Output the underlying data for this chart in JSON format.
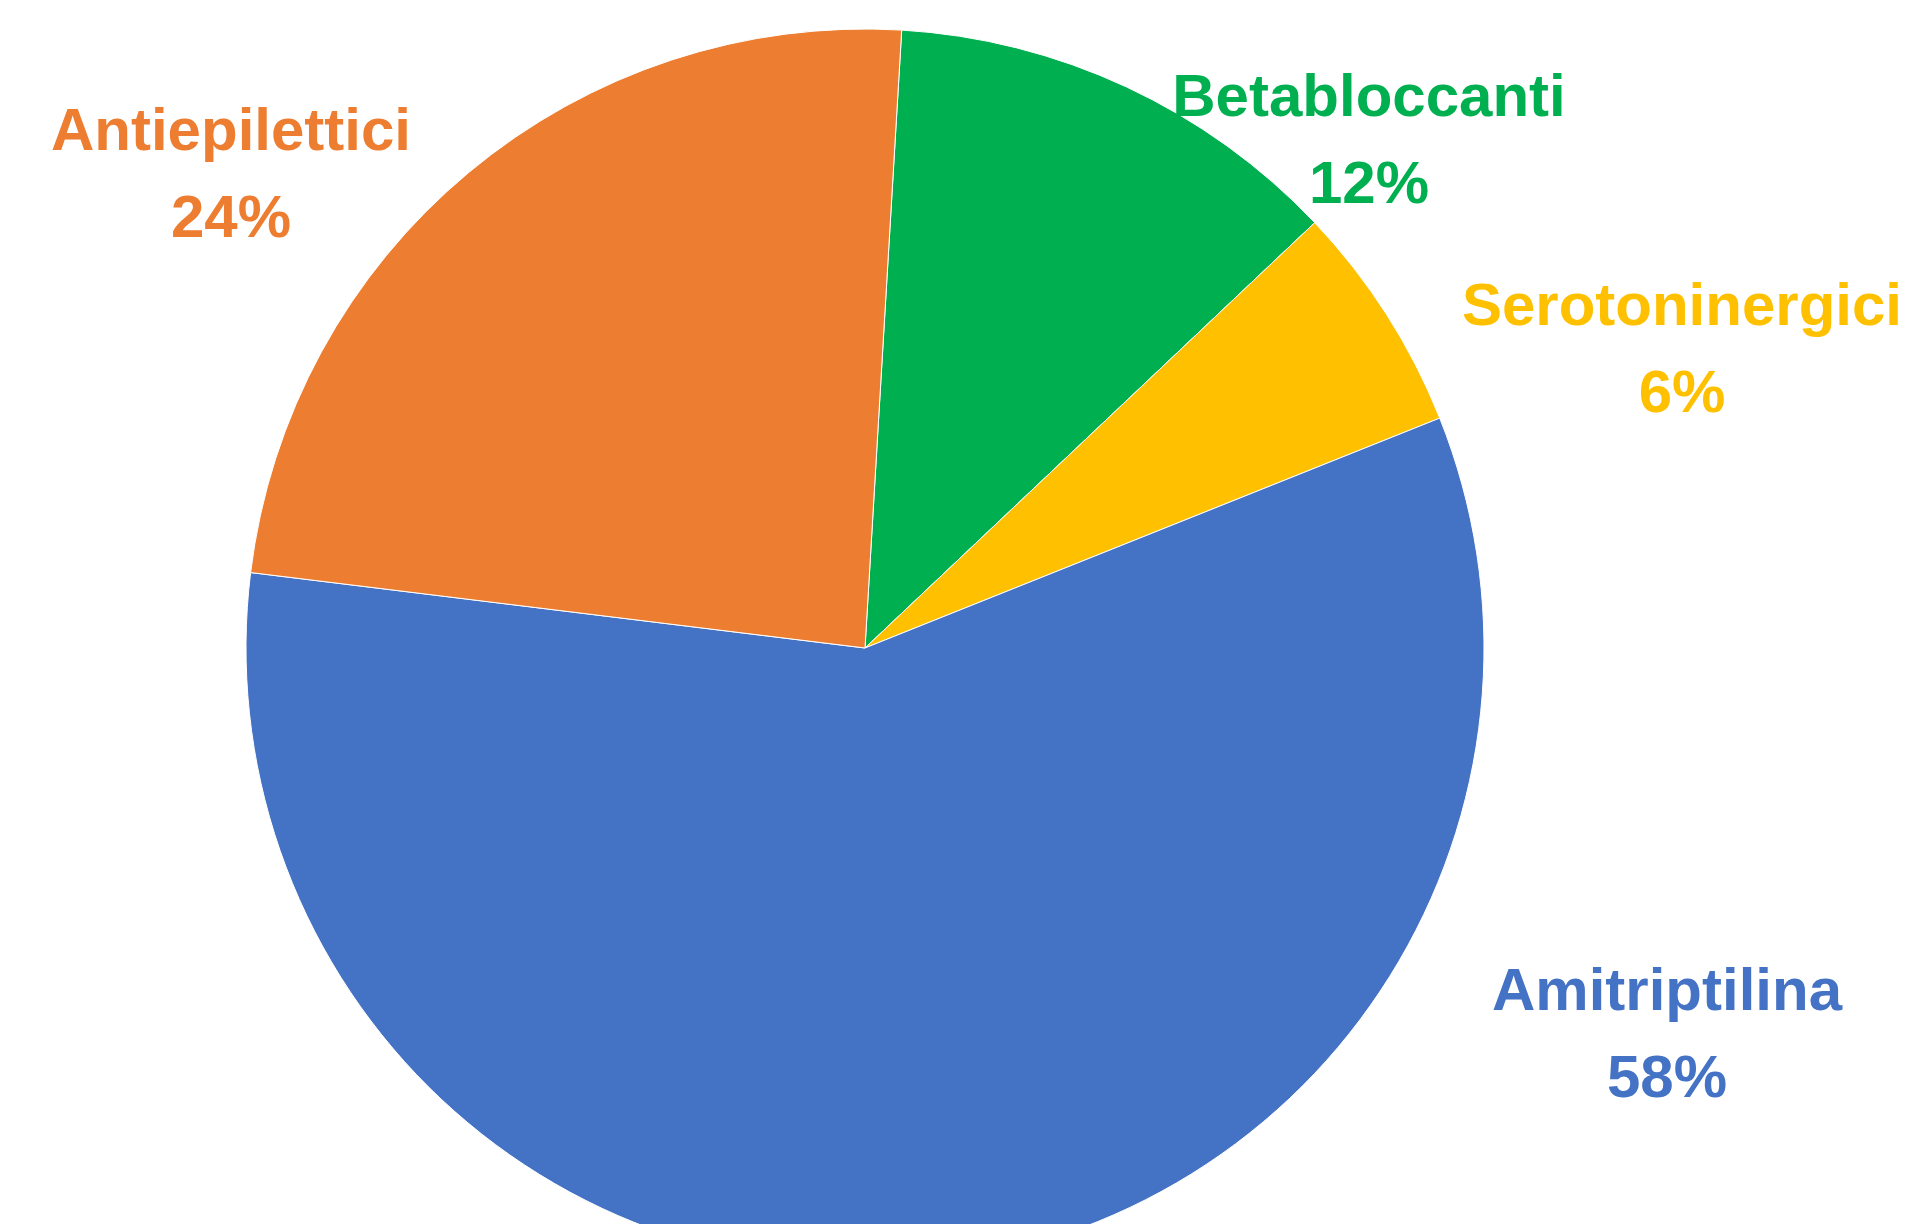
{
  "chart_data": {
    "type": "pie",
    "categories": [
      "Betabloccanti",
      "Serotoninergici",
      "Amitriptilina",
      "Antiepilettici"
    ],
    "values": [
      12,
      6,
      58,
      24
    ],
    "colors": [
      "#00b050",
      "#ffc000",
      "#4472c4",
      "#ed7d31"
    ],
    "value_labels": [
      "12%",
      "6%",
      "58%",
      "24%"
    ],
    "legend": false
  }
}
